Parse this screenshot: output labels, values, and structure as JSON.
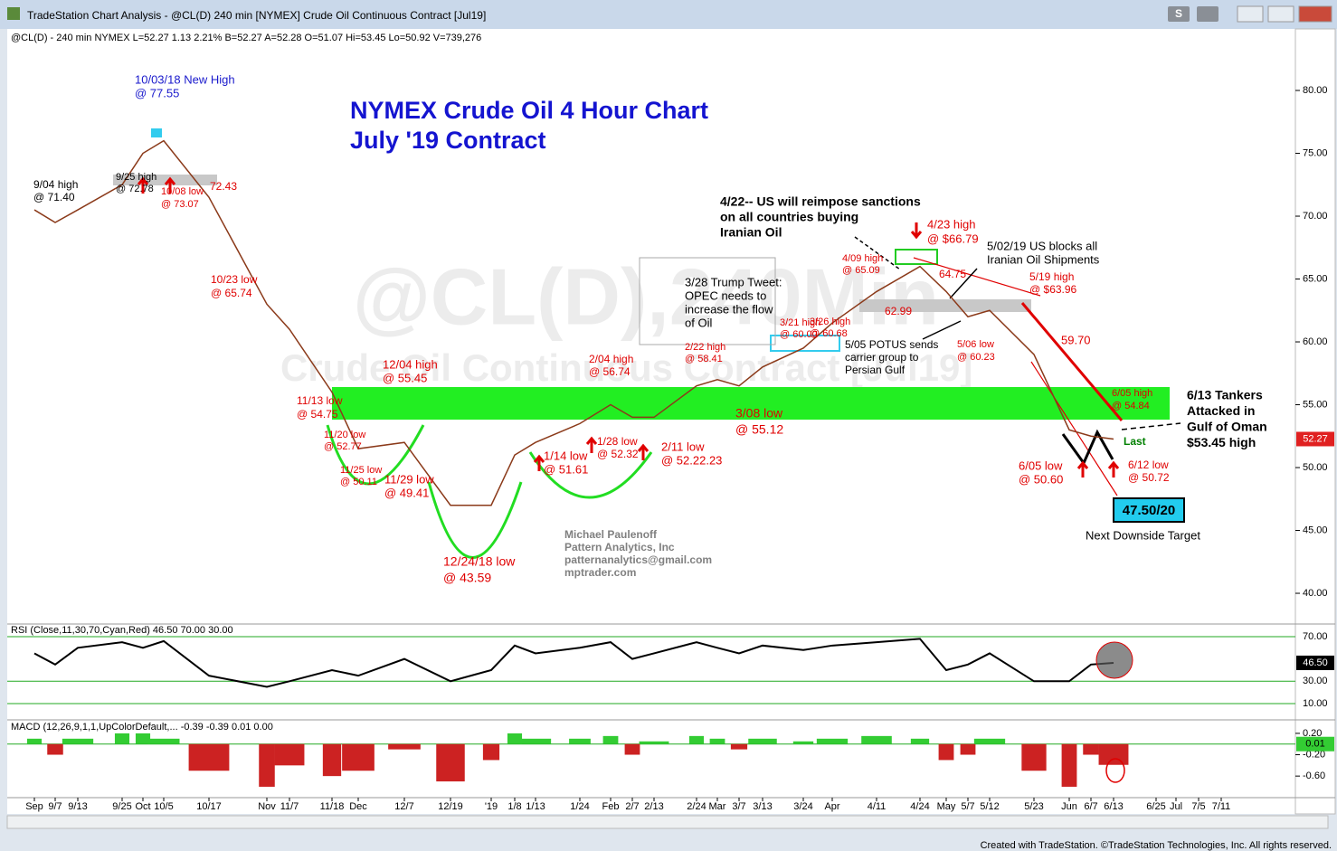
{
  "window": {
    "title": "TradeStation Chart Analysis - @CL(D) 240 min [NYMEX] Crude Oil Continuous Contract [Jul19]",
    "button_s": "S",
    "footer": "Created with TradeStation. ©TradeStation Technologies, Inc. All rights reserved."
  },
  "chart_data": [
    {
      "type": "line",
      "info": "@CL(D) - 240 min  NYMEX  L=52.27  1.13  2.21%  B=52.27  A=52.28  O=51.07  Hi=53.45  Lo=50.92  V=739,276",
      "title": "NYMEX Crude Oil 4 Hour Chart",
      "subtitle": "July '19 Contract",
      "watermark": [
        "@CL(D),240Min",
        "Crude Oil Continuous Contract [Jul19]"
      ],
      "categories": [
        "Sep",
        "9/7",
        "9/13",
        "9/25",
        "Oct",
        "10/5",
        "10/17",
        "Nov",
        "11/7",
        "11/18",
        "Dec",
        "12/7",
        "12/19",
        "'19",
        "1/8",
        "1/13",
        "1/24",
        "Feb",
        "2/7",
        "2/13",
        "2/24",
        "Mar",
        "3/7",
        "3/13",
        "3/24",
        "Apr",
        "4/11",
        "4/24",
        "May",
        "5/7",
        "5/12",
        "5/23",
        "Jun",
        "6/7",
        "6/13",
        "6/25",
        "Jul",
        "7/5",
        "7/11"
      ],
      "values": [
        70.5,
        69.5,
        70.5,
        72.5,
        75,
        76,
        71.5,
        63,
        61,
        56,
        51.5,
        52,
        47,
        47,
        51,
        52,
        53.5,
        55,
        54,
        54,
        56.5,
        57,
        56.5,
        58,
        59.5,
        61.5,
        64,
        66,
        64,
        62,
        62.5,
        59,
        53,
        52.5,
        52.27,
        null,
        null,
        null,
        null
      ],
      "color": "#8b3a1a",
      "ylim": [
        37.7,
        84.75
      ],
      "yticks": [
        {
          "value": 40,
          "label": "40.00"
        },
        {
          "value": 45,
          "label": "45.00"
        },
        {
          "value": 50,
          "label": "50.00"
        },
        {
          "value": 55,
          "label": "55.00"
        },
        {
          "value": 60,
          "label": "60.00"
        },
        {
          "value": 65,
          "label": "65.00"
        },
        {
          "value": 70,
          "label": "70.00"
        },
        {
          "value": 75,
          "label": "75.00"
        },
        {
          "value": 80,
          "label": "80.00"
        }
      ],
      "last_box": "52.27",
      "annotations": [
        {
          "lines": [
            "10/03/18 New High",
            "@ 77.55"
          ],
          "color": "#1a1acc"
        },
        {
          "lines": [
            "9/04 high",
            "@ 71.40"
          ],
          "color": "#000000"
        },
        {
          "lines": [
            "9/25 high",
            "@ 72.78"
          ],
          "color": "#000000"
        },
        {
          "lines": [
            "10/08 low",
            "@ 73.07"
          ],
          "color": "#e00000"
        },
        {
          "lines": [
            "72.43"
          ],
          "color": "#e00000"
        },
        {
          "lines": [
            "10/23 low",
            "@ 65.74"
          ],
          "color": "#e00000"
        },
        {
          "lines": [
            "11/13 low",
            "@ 54.75"
          ],
          "color": "#e00000"
        },
        {
          "lines": [
            "11/20 low",
            "@ 52.77"
          ],
          "color": "#e00000"
        },
        {
          "lines": [
            "11/25 low",
            "@ 50.11"
          ],
          "color": "#e00000"
        },
        {
          "lines": [
            "11/29 low",
            "@ 49.41"
          ],
          "color": "#e00000"
        },
        {
          "lines": [
            "12/04 high",
            "@ 55.45"
          ],
          "color": "#e00000"
        },
        {
          "lines": [
            "12/24/18 low",
            "@ 43.59"
          ],
          "color": "#e00000"
        },
        {
          "lines": [
            "1/14 low",
            "@ 51.61"
          ],
          "color": "#e00000"
        },
        {
          "lines": [
            "1/28 low",
            "@ 52.32"
          ],
          "color": "#e00000"
        },
        {
          "lines": [
            "2/04 high",
            "@ 56.74"
          ],
          "color": "#e00000"
        },
        {
          "lines": [
            "2/11 low",
            "@ 52.22.23"
          ],
          "color": "#e00000"
        },
        {
          "lines": [
            "2/22 high",
            "@ 58.41"
          ],
          "color": "#e00000"
        },
        {
          "lines": [
            "3/08 low",
            "@ 55.12"
          ],
          "color": "#e00000"
        },
        {
          "lines": [
            "3/21 high",
            "@ 60.00"
          ],
          "color": "#e00000"
        },
        {
          "lines": [
            "3/26 high",
            "@ 60.68"
          ],
          "color": "#e00000"
        },
        {
          "lines": [
            "4/09 high",
            "@ 65.09"
          ],
          "color": "#e00000"
        },
        {
          "lines": [
            "4/23 high",
            "@ $66.79"
          ],
          "color": "#e00000"
        },
        {
          "lines": [
            "64.75"
          ],
          "color": "#e00000"
        },
        {
          "lines": [
            "62.99"
          ],
          "color": "#e00000"
        },
        {
          "lines": [
            "5/06 low",
            "@ 60.23"
          ],
          "color": "#e00000"
        },
        {
          "lines": [
            "5/19 high",
            "@ $63.96"
          ],
          "color": "#e00000"
        },
        {
          "lines": [
            "59.70"
          ],
          "color": "#e00000"
        },
        {
          "lines": [
            "6/05 high",
            "@ 54.84"
          ],
          "color": "#e00000"
        },
        {
          "lines": [
            "6/05 low",
            "@ 50.60"
          ],
          "color": "#e00000"
        },
        {
          "lines": [
            "6/12 low",
            "@ 50.72"
          ],
          "color": "#e00000"
        },
        {
          "lines": [
            "Last"
          ],
          "color": "#008000"
        },
        {
          "lines": [
            "4/22-- US will reimpose sanctions",
            "on all countries buying",
            "Iranian Oil"
          ],
          "color": "#000000"
        },
        {
          "lines": [
            "5/02/19 US blocks all",
            "Iranian Oil Shipments"
          ],
          "color": "#000000"
        },
        {
          "lines": [
            "3/28 Trump Tweet:",
            "OPEC needs to",
            "increase the flow",
            "of Oil"
          ],
          "color": "#000000"
        },
        {
          "lines": [
            "5/05 POTUS sends",
            "carrier group to",
            "Persian Gulf"
          ],
          "color": "#000000"
        },
        {
          "lines": [
            "6/13 Tankers",
            "Attacked in",
            "Gulf of Oman",
            "$53.45 high"
          ],
          "color": "#000000"
        },
        {
          "lines": [
            "Next Downside Target"
          ],
          "color": "#000000"
        },
        {
          "lines": [
            "Michael Paulenoff",
            "Pattern Analytics, Inc",
            "patternanalytics@gmail.com",
            "mptrader.com"
          ],
          "color": "#808080"
        }
      ],
      "target": "47.50/20"
    },
    {
      "type": "line",
      "label": "RSI (Close,11,30,70,Cyan,Red)  46.50  70.00  30.00",
      "values": [
        55,
        45,
        60,
        65,
        60,
        66,
        35,
        25,
        30,
        40,
        35,
        50,
        30,
        40,
        62,
        55,
        60,
        65,
        50,
        55,
        65,
        60,
        55,
        62,
        58,
        62,
        65,
        68,
        40,
        45,
        55,
        30,
        30,
        45,
        46.5,
        null,
        null,
        null,
        null
      ],
      "color": "#000000",
      "ylim": [
        0.27,
        73.2
      ],
      "yticks": [
        {
          "value": 10,
          "label": "10.00"
        },
        {
          "value": 30,
          "label": "30.00"
        },
        {
          "value": 70,
          "label": "70.00"
        }
      ],
      "last_box": "46.50"
    },
    {
      "type": "bar",
      "label": "MACD (12,26,9,1,1,UpColorDefault,...  -0.39  -0.39  0.01  0.00",
      "values": [
        0.1,
        -0.2,
        0.1,
        0.2,
        0.2,
        0.1,
        -0.5,
        -0.8,
        -0.4,
        -0.6,
        -0.5,
        -0.1,
        -0.7,
        -0.3,
        0.2,
        0.1,
        0.1,
        0.15,
        -0.2,
        0.05,
        0.15,
        0.1,
        -0.1,
        0.1,
        0.05,
        0.1,
        0.15,
        0.1,
        -0.3,
        -0.2,
        0.1,
        -0.5,
        -0.8,
        -0.2,
        -0.39,
        null,
        null,
        null,
        null
      ],
      "colors": {
        "up": "#33cc33",
        "down": "#cc2222"
      },
      "ylim": [
        -0.97,
        0.3
      ],
      "yticks": [
        {
          "value": 0.2,
          "label": "0.20"
        },
        {
          "value": -0.2,
          "label": "-0.20"
        },
        {
          "value": -0.6,
          "label": "-0.60"
        }
      ],
      "last_box": "0.01"
    }
  ]
}
